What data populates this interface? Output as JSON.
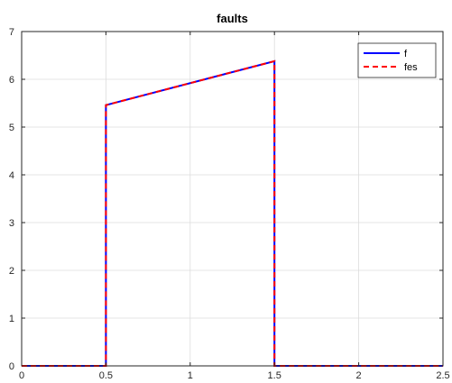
{
  "chart_data": {
    "type": "line",
    "title": "faults",
    "xlabel": "",
    "ylabel": "",
    "xlim": [
      0,
      2.5
    ],
    "ylim": [
      0,
      7
    ],
    "x_ticks": [
      0,
      0.5,
      1,
      1.5,
      2,
      2.5
    ],
    "x_tick_labels": [
      "0",
      "0.5",
      "1",
      "1.5",
      "2",
      "2.5"
    ],
    "y_ticks": [
      0,
      1,
      2,
      3,
      4,
      5,
      6,
      7
    ],
    "y_tick_labels": [
      "0",
      "1",
      "2",
      "3",
      "4",
      "5",
      "6",
      "7"
    ],
    "grid": true,
    "legend_position": "top-right",
    "series": [
      {
        "name": "f",
        "color": "#0000ff",
        "style": "solid",
        "x": [
          0,
          0.5,
          0.5,
          1.5,
          1.5,
          2.5
        ],
        "y": [
          0,
          0,
          5.46,
          6.38,
          0,
          0
        ]
      },
      {
        "name": "fes",
        "color": "#ff0000",
        "style": "dashed",
        "x": [
          0,
          0.5,
          0.5,
          1.5,
          1.5,
          2.5
        ],
        "y": [
          0,
          0,
          5.46,
          6.38,
          0,
          0
        ]
      }
    ]
  }
}
